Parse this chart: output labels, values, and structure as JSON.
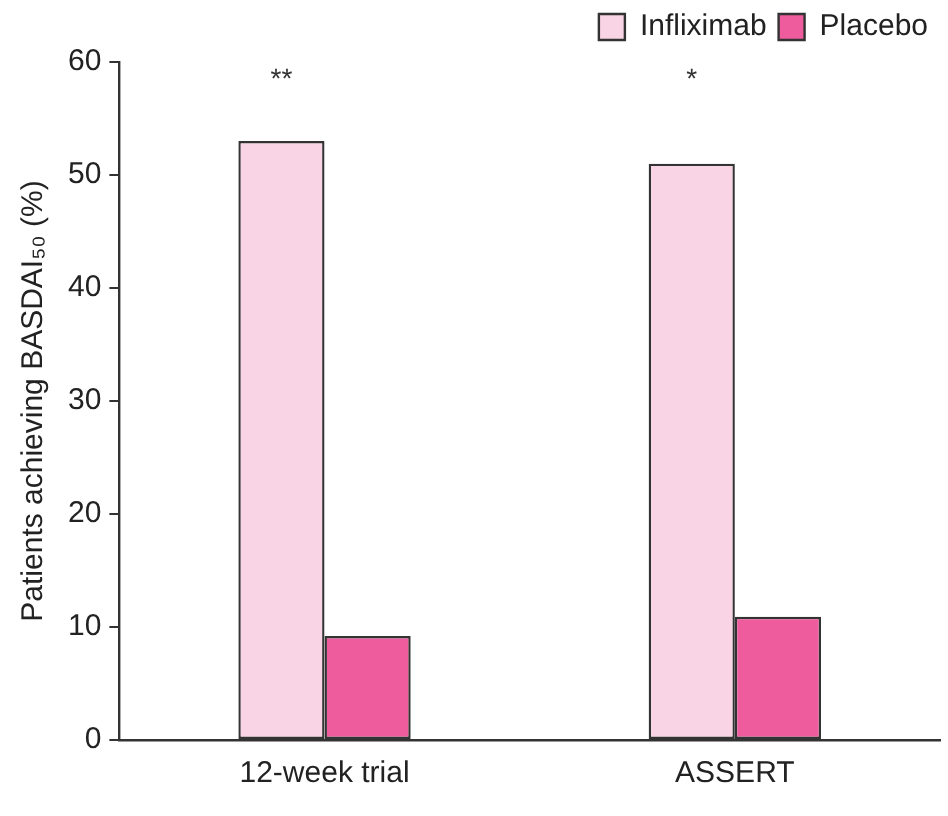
{
  "chart_data": {
    "type": "bar",
    "ylabel": "Patients achieving BASDAI₅₀ (%)",
    "categories": [
      "12-week trial",
      "ASSERT"
    ],
    "series": [
      {
        "name": "Infliximab",
        "color": "#f9d4e4",
        "values": [
          53,
          51
        ]
      },
      {
        "name": "Placebo",
        "color": "#ee5c9e",
        "values": [
          9.2,
          10.9
        ]
      }
    ],
    "ylim": [
      0,
      60
    ],
    "yticks": [
      0,
      10,
      20,
      30,
      40,
      50,
      60
    ],
    "grid": false,
    "legend": "top right",
    "annotations": [
      "**",
      "*"
    ]
  }
}
